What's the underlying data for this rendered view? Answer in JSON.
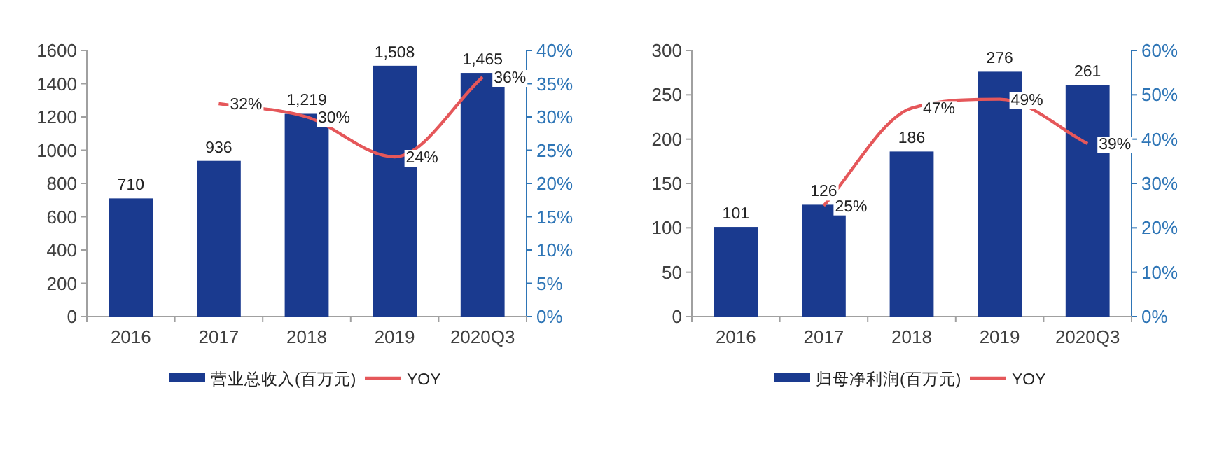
{
  "chart_data": [
    {
      "type": "bar",
      "categories": [
        "2016",
        "2017",
        "2018",
        "2019",
        "2020Q3"
      ],
      "series": [
        {
          "name": "营业总收入(百万元)",
          "color": "#1a3a8f",
          "values": [
            710,
            936,
            1219,
            1508,
            1465
          ],
          "value_labels": [
            "710",
            "936",
            "1,219",
            "1,508",
            "1,465"
          ]
        },
        {
          "type": "line",
          "name": "YOY",
          "color": "#e5575a",
          "axis": "y2",
          "values": [
            null,
            32,
            30,
            24,
            36
          ],
          "value_labels": [
            null,
            "32%",
            "30%",
            "24%",
            "36%"
          ]
        }
      ],
      "ylim": [
        0,
        1600
      ],
      "yticks": [
        0,
        200,
        400,
        600,
        800,
        1000,
        1200,
        1400,
        1600
      ],
      "y2lim": [
        0,
        40
      ],
      "y2ticks": [
        {
          "value": 0,
          "label": "0%"
        },
        {
          "value": 5,
          "label": "5%"
        },
        {
          "value": 10,
          "label": "10%"
        },
        {
          "value": 15,
          "label": "15%"
        },
        {
          "value": 20,
          "label": "20%"
        },
        {
          "value": 25,
          "label": "25%"
        },
        {
          "value": 30,
          "label": "30%"
        },
        {
          "value": 35,
          "label": "35%"
        },
        {
          "value": 40,
          "label": "40%"
        }
      ],
      "legend": "bottom"
    },
    {
      "type": "bar",
      "categories": [
        "2016",
        "2017",
        "2018",
        "2019",
        "2020Q3"
      ],
      "series": [
        {
          "name": "归母净利润(百万元)",
          "color": "#1a3a8f",
          "values": [
            101,
            126,
            186,
            276,
            261
          ],
          "value_labels": [
            "101",
            "126",
            "186",
            "276",
            "261"
          ]
        },
        {
          "type": "line",
          "name": "YOY",
          "color": "#e5575a",
          "axis": "y2",
          "values": [
            null,
            25,
            47,
            49,
            39
          ],
          "value_labels": [
            null,
            "25%",
            "47%",
            "49%",
            "39%"
          ]
        }
      ],
      "ylim": [
        0,
        300
      ],
      "yticks": [
        0,
        50,
        100,
        150,
        200,
        250,
        300
      ],
      "y2lim": [
        0,
        60
      ],
      "y2ticks": [
        {
          "value": 0,
          "label": "0%"
        },
        {
          "value": 10,
          "label": "10%"
        },
        {
          "value": 20,
          "label": "20%"
        },
        {
          "value": 30,
          "label": "30%"
        },
        {
          "value": 40,
          "label": "40%"
        },
        {
          "value": 50,
          "label": "50%"
        },
        {
          "value": 60,
          "label": "60%"
        }
      ],
      "legend": "bottom"
    }
  ]
}
